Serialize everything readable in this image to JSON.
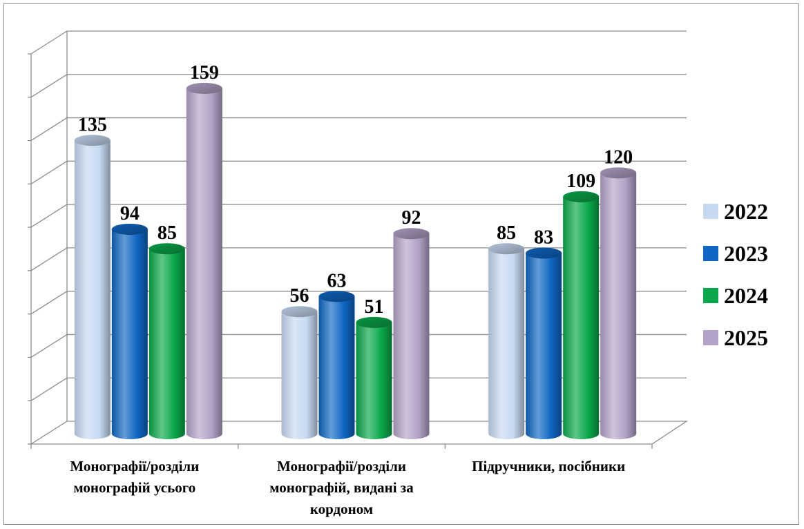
{
  "chart_data": {
    "type": "bar",
    "style": "3d-cylinder",
    "categories": [
      "Монографії/розділи монографій усього",
      "Монографії/розділи монографій, видані за кордоном",
      "Підручники, посібники"
    ],
    "series": [
      {
        "name": "2022",
        "values": [
          135,
          56,
          85
        ],
        "color": "#c6d9f1"
      },
      {
        "name": "2023",
        "values": [
          94,
          63,
          83
        ],
        "color": "#0f66c3"
      },
      {
        "name": "2024",
        "values": [
          85,
          51,
          109
        ],
        "color": "#0aa84a"
      },
      {
        "name": "2025",
        "values": [
          159,
          92,
          120
        ],
        "color": "#b3a2c7"
      }
    ],
    "ylim": [
      0,
      180
    ],
    "grid": true,
    "legend": "right"
  }
}
